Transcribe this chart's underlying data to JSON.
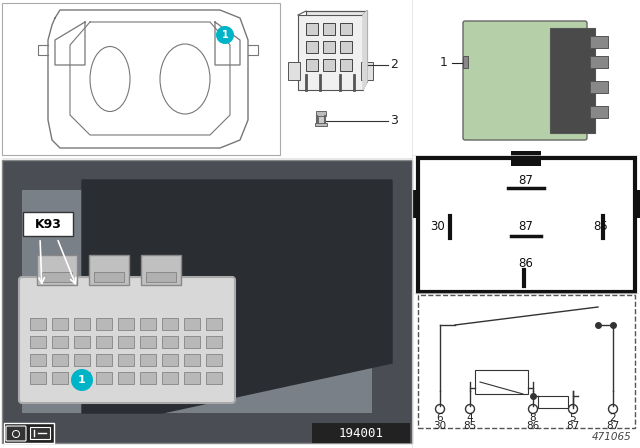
{
  "bg_color": "#ffffff",
  "relay_green": "#b5cfa8",
  "relay_green_dark": "#8aaa80",
  "cyan_circle": "#00b4c8",
  "dark_gray": "#444444",
  "mid_gray": "#888888",
  "light_gray": "#cccccc",
  "photo_bg": "#5a5a5a",
  "photo_bg2": "#6e6e6e",
  "diagram_num": "471065",
  "photo_num": "194001",
  "pin_labels_top": [
    "6",
    "4",
    "8",
    "5",
    "2"
  ],
  "pin_labels_bot": [
    "30",
    "85",
    "86",
    "87",
    "87"
  ]
}
